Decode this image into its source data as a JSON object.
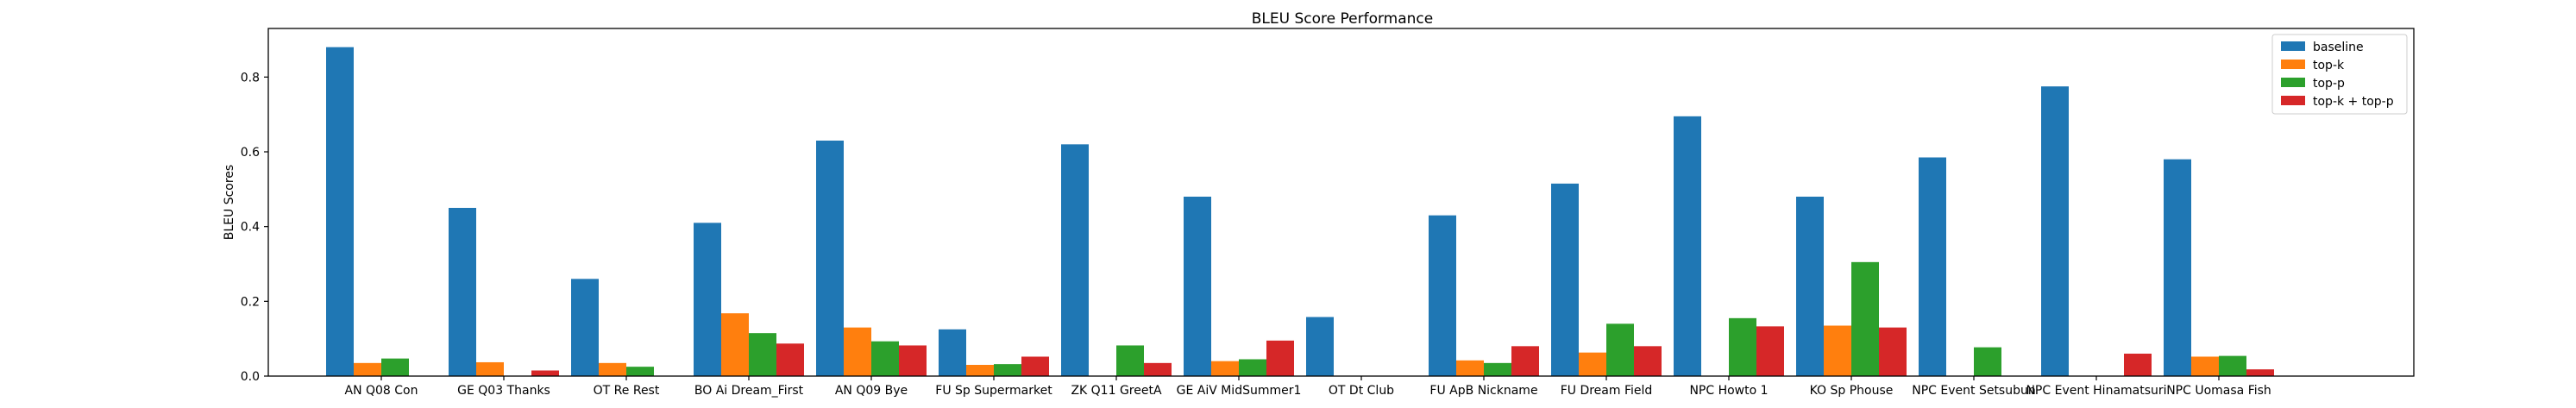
{
  "chart_data": {
    "type": "bar",
    "title": "BLEU Score Performance",
    "xlabel": "",
    "ylabel": "BLEU Scores",
    "ylim": [
      0,
      0.93
    ],
    "yticks": [
      "0.0",
      "0.2",
      "0.4",
      "0.6",
      "0.8"
    ],
    "grid": false,
    "legend_position": "top-right",
    "categories": [
      "AN Q08 Con",
      "GE Q03 Thanks",
      "OT Re Rest",
      "BO Ai Dream_First",
      "AN Q09 Bye",
      "FU Sp Supermarket",
      "ZK Q11 GreetA",
      "GE AiV MidSummer1",
      "OT Dt Club",
      "FU ApB Nickname",
      "FU Dream Field",
      "NPC Howto 1",
      "KO Sp Phouse",
      "NPC Event Setsubun",
      "NPC Event Hinamatsuri",
      "NPC Uomasa Fish"
    ],
    "series": [
      {
        "name": "baseline",
        "color": "#1f77b4",
        "values": [
          0.88,
          0.45,
          0.26,
          0.41,
          0.63,
          0.125,
          0.62,
          0.48,
          0.158,
          0.43,
          0.515,
          0.695,
          0.48,
          0.585,
          0.775,
          0.58
        ]
      },
      {
        "name": "top-k",
        "color": "#ff7f0e",
        "values": [
          0.035,
          0.037,
          0.035,
          0.168,
          0.13,
          0.03,
          0.0,
          0.04,
          0.0,
          0.042,
          0.063,
          0.0,
          0.135,
          0.0,
          0.0,
          0.052
        ]
      },
      {
        "name": "top-p",
        "color": "#2ca02c",
        "values": [
          0.047,
          0.0,
          0.025,
          0.115,
          0.093,
          0.032,
          0.082,
          0.045,
          0.0,
          0.035,
          0.14,
          0.155,
          0.305,
          0.077,
          0.0,
          0.054
        ]
      },
      {
        "name": "top-k + top-p",
        "color": "#d62728",
        "values": [
          0.0,
          0.015,
          0.0,
          0.087,
          0.082,
          0.052,
          0.035,
          0.095,
          0.0,
          0.08,
          0.08,
          0.133,
          0.13,
          0.0,
          0.06,
          0.018
        ]
      }
    ]
  }
}
